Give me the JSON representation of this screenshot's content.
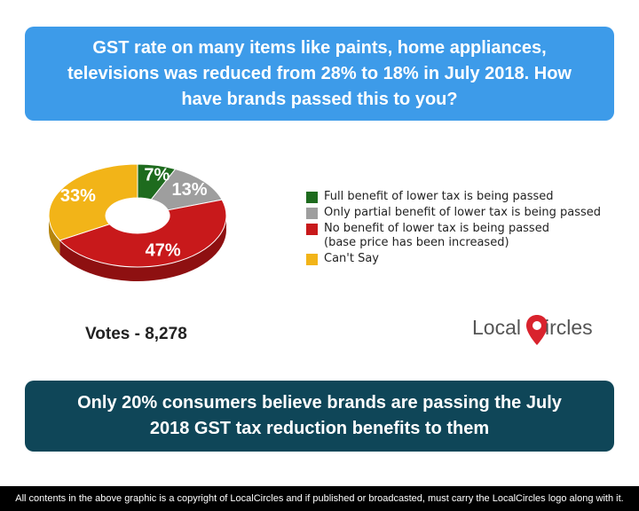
{
  "header": {
    "question": "GST rate on many items like paints, home appliances, televisions was reduced from 28% to 18% in July 2018. How have brands passed this to you?"
  },
  "chart_data": {
    "type": "pie",
    "categories": [
      "Full benefit of lower tax is being passed",
      "Only partial benefit of lower tax is being passed",
      "No benefit of lower tax is being passed\n(base price has been increased)",
      "Can't Say"
    ],
    "values": [
      7,
      13,
      47,
      33
    ],
    "value_labels": [
      "7%",
      "13%",
      "47%",
      "33%"
    ],
    "colors": [
      "#1e6b1e",
      "#9e9e9e",
      "#c8191b",
      "#f2b418"
    ],
    "side_colors": [
      "#124a12",
      "#727272",
      "#8e1011",
      "#b5850d"
    ],
    "donut": true,
    "legend_position": "right"
  },
  "votes": {
    "label": "Votes - 8,278"
  },
  "logo": {
    "part1": "Local",
    "part2": "ircles",
    "accent": "#d9232d"
  },
  "summary": {
    "text": "Only 20% consumers believe brands are passing the July 2018 GST tax reduction benefits to them"
  },
  "footer": {
    "text": "All contents in the above graphic is a copyright of LocalCircles and if published or broadcasted, must carry the LocalCircles logo along with it."
  }
}
